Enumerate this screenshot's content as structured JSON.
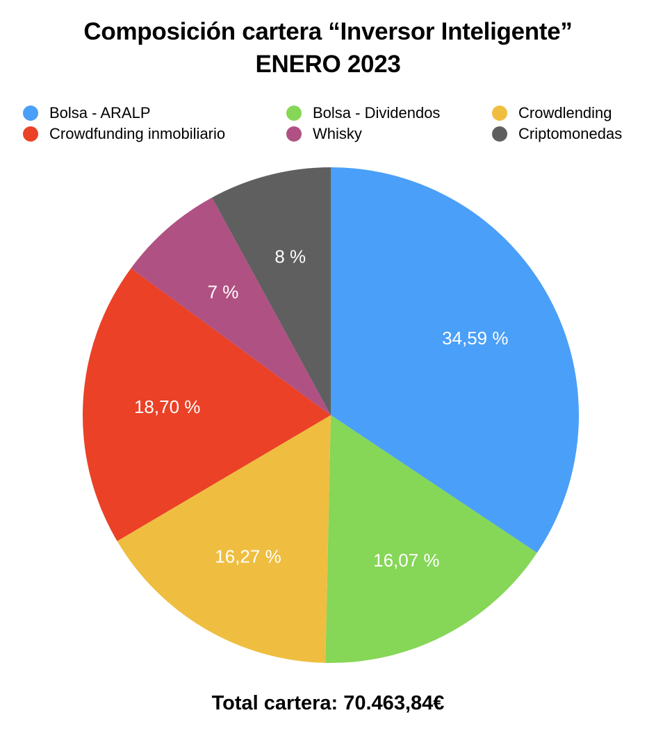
{
  "title": {
    "line1": "Composición cartera “Inversor Inteligente”",
    "line2": "ENERO 2023"
  },
  "total": "Total cartera: 70.463,84€",
  "chart_data": {
    "type": "pie",
    "title": "Composición cartera “Inversor Inteligente” ENERO 2023",
    "legend_position": "top",
    "slices": [
      {
        "name": "Bolsa - ARALP",
        "value": 34.59,
        "label": "34,59 %",
        "color": "#4A9FF8"
      },
      {
        "name": "Bolsa - Dividendos",
        "value": 16.07,
        "label": "16,07 %",
        "color": "#86D657"
      },
      {
        "name": "Crowdlending",
        "value": 16.27,
        "label": "16,27 %",
        "color": "#EFBE40"
      },
      {
        "name": "Crowdfunding inmobiliario",
        "value": 18.7,
        "label": "18,70 %",
        "color": "#EA4127"
      },
      {
        "name": "Whisky",
        "value": 7,
        "label": "7 %",
        "color": "#B05183"
      },
      {
        "name": "Criptomonedas",
        "value": 8,
        "label": "8 %",
        "color": "#5F5F5F"
      }
    ]
  }
}
